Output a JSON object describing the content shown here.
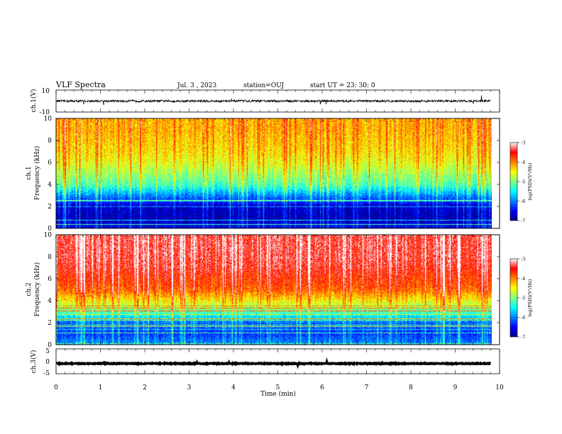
{
  "header": {
    "title": "VLF Spectra",
    "date": "Jul. 3 , 2023",
    "station": "station=OUJ",
    "start_ut": "start UT = 23: 30: 0"
  },
  "chart_data": [
    {
      "type": "line",
      "panel": "ch1-waveform",
      "ylabel": "ch.1(V)",
      "ylim": [
        -10,
        10
      ],
      "yticks": [
        "10",
        "-10"
      ],
      "xlim": [
        0,
        9.8
      ],
      "series": [
        {
          "values_approx_mean": 0,
          "noise_amplitude": 2,
          "color": "#000000"
        }
      ]
    },
    {
      "type": "heatmap",
      "panel": "ch1-spectrogram",
      "ylabel": "ch.1\nFrequency (kHz)",
      "ylim": [
        0,
        10
      ],
      "yticks": [
        "0",
        "2",
        "4",
        "6",
        "8",
        "10"
      ],
      "xlim": [
        0,
        9.8
      ],
      "colorbar": {
        "label": "log(PSD)(V²/Hz)",
        "range": [
          -7,
          -3
        ],
        "ticks": [
          "-3",
          "-4",
          "-5",
          "-6",
          "-7"
        ]
      },
      "profile_log_psd": [
        {
          "f": 0.2,
          "v": -6.6
        },
        {
          "f": 1.0,
          "v": -6.8
        },
        {
          "f": 2.0,
          "v": -6.7
        },
        {
          "f": 3.0,
          "v": -6.0
        },
        {
          "f": 4.0,
          "v": -5.2
        },
        {
          "f": 5.0,
          "v": -4.9
        },
        {
          "f": 6.0,
          "v": -4.6
        },
        {
          "f": 7.0,
          "v": -4.4
        },
        {
          "f": 8.0,
          "v": -4.3
        },
        {
          "f": 9.0,
          "v": -4.2
        },
        {
          "f": 10.0,
          "v": -4.2
        }
      ]
    },
    {
      "type": "heatmap",
      "panel": "ch2-spectrogram",
      "ylabel": "ch.2\nFrequency (kHz)",
      "ylim": [
        0,
        10
      ],
      "yticks": [
        "0",
        "2",
        "4",
        "6",
        "8",
        "10"
      ],
      "xlim": [
        0,
        9.8
      ],
      "colorbar": {
        "label": "log(PSD)(V²/Hz)",
        "range": [
          -7,
          -3
        ],
        "ticks": [
          "-3",
          "-4",
          "-5",
          "-6",
          "-7"
        ]
      },
      "profile_log_psd": [
        {
          "f": 0.2,
          "v": -6.0
        },
        {
          "f": 1.0,
          "v": -6.3
        },
        {
          "f": 2.0,
          "v": -6.1
        },
        {
          "f": 3.0,
          "v": -5.2
        },
        {
          "f": 4.0,
          "v": -4.5
        },
        {
          "f": 5.0,
          "v": -3.9
        },
        {
          "f": 6.0,
          "v": -3.7
        },
        {
          "f": 7.0,
          "v": -3.5
        },
        {
          "f": 8.0,
          "v": -3.4
        },
        {
          "f": 9.0,
          "v": -3.4
        },
        {
          "f": 10.0,
          "v": -3.4
        }
      ]
    },
    {
      "type": "line",
      "panel": "ch3-waveform",
      "ylabel": "ch.3(V)",
      "ylim": [
        -5,
        5
      ],
      "yticks": [
        "5",
        "0",
        "-5"
      ],
      "xlim": [
        0,
        9.8
      ],
      "series": [
        {
          "values_approx_mean": -0.9,
          "noise_amplitude": 0.3,
          "color": "#000000"
        }
      ]
    }
  ],
  "x_axis": {
    "label": "Time (min)",
    "range": [
      0,
      10
    ],
    "ticks": [
      "0",
      "1",
      "2",
      "3",
      "4",
      "5",
      "6",
      "7",
      "8",
      "9",
      "10"
    ]
  }
}
